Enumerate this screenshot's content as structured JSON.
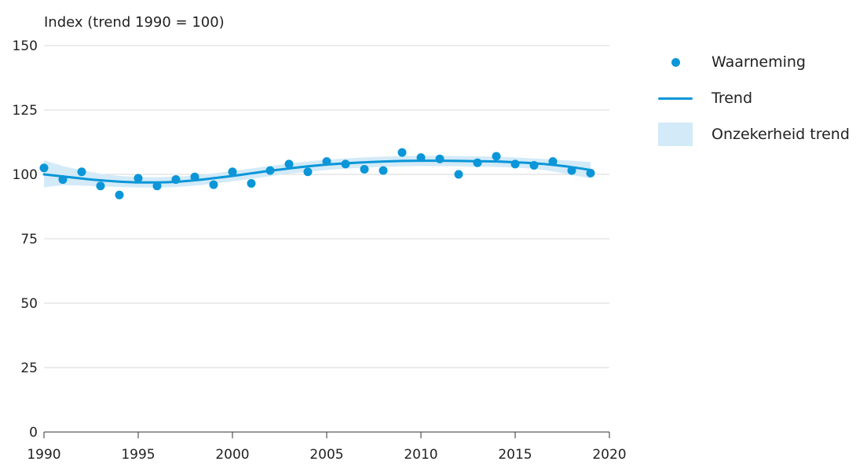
{
  "chart_data": {
    "type": "scatter",
    "title": "",
    "ylabel": "Index (trend 1990 = 100)",
    "xlabel": "",
    "xlim": [
      1990,
      2020
    ],
    "ylim": [
      0,
      150
    ],
    "x_ticks": [
      "1990",
      "1995",
      "2000",
      "2005",
      "2010",
      "2015",
      "2020"
    ],
    "y_ticks": [
      "0",
      "25",
      "50",
      "75",
      "100",
      "125",
      "150"
    ],
    "grid": true,
    "legend_placement": "top-right",
    "series": [
      {
        "name": "Waarneming",
        "kind": "points",
        "color": "#0a96d8",
        "x": [
          1990,
          1991,
          1992,
          1993,
          1994,
          1995,
          1996,
          1997,
          1998,
          1999,
          2000,
          2001,
          2002,
          2003,
          2004,
          2005,
          2006,
          2007,
          2008,
          2009,
          2010,
          2011,
          2012,
          2013,
          2014,
          2015,
          2016,
          2017,
          2018,
          2019
        ],
        "y": [
          102.5,
          98,
          101,
          95.5,
          92,
          98.5,
          95.5,
          98,
          99,
          96,
          101,
          96.5,
          101.5,
          104,
          101,
          105,
          104,
          102,
          101.5,
          108.5,
          106.5,
          106,
          100,
          104.5,
          107,
          104,
          103.5,
          105,
          101.5,
          100.5
        ]
      },
      {
        "name": "Trend",
        "kind": "line",
        "color": "#0a96d8",
        "x": [
          1990,
          1991,
          1992,
          1993,
          1994,
          1995,
          1996,
          1997,
          1998,
          1999,
          2000,
          2001,
          2002,
          2003,
          2004,
          2005,
          2006,
          2007,
          2008,
          2009,
          2010,
          2011,
          2012,
          2013,
          2014,
          2015,
          2016,
          2017,
          2018,
          2019
        ],
        "y": [
          100,
          99.2,
          98.4,
          97.7,
          97.2,
          96.9,
          96.9,
          97.1,
          97.7,
          98.5,
          99.4,
          100.4,
          101.4,
          102.3,
          103.1,
          103.8,
          104.3,
          104.7,
          105,
          105.2,
          105.3,
          105.3,
          105.2,
          105.1,
          105,
          104.7,
          104.3,
          103.7,
          102.8,
          101.7
        ]
      },
      {
        "name": "Onzekerheid trend",
        "kind": "band",
        "color": "#d3eaf8",
        "x": [
          1990,
          1991,
          1992,
          1993,
          1994,
          1995,
          1996,
          1997,
          1998,
          1999,
          2000,
          2001,
          2002,
          2003,
          2004,
          2005,
          2006,
          2007,
          2008,
          2009,
          2010,
          2011,
          2012,
          2013,
          2014,
          2015,
          2016,
          2017,
          2018,
          2019
        ],
        "upper": [
          105.5,
          103.2,
          101.6,
          100.2,
          99.4,
          99,
          98.9,
          99.1,
          99.6,
          100.4,
          101.3,
          102.3,
          103.3,
          104.2,
          105,
          105.7,
          106.2,
          106.6,
          106.9,
          107.1,
          107.2,
          107.2,
          107.1,
          107,
          106.9,
          106.6,
          106.2,
          105.8,
          105.3,
          104.8
        ],
        "lower": [
          95,
          95.8,
          95.6,
          95.4,
          95.1,
          94.9,
          94.9,
          95.1,
          95.6,
          96.4,
          97.3,
          98.3,
          99.3,
          100.2,
          101,
          101.7,
          102.2,
          102.6,
          102.9,
          103.1,
          103.2,
          103.2,
          103.1,
          103,
          102.9,
          102.6,
          102.2,
          101.2,
          99.8,
          98.5
        ]
      }
    ]
  },
  "legend": {
    "items": [
      {
        "label": "Waarneming",
        "key": "dot",
        "color": "#0a96d8"
      },
      {
        "label": "Trend",
        "key": "line",
        "color": "#0a96d8"
      },
      {
        "label": "Onzekerheid trend",
        "key": "band",
        "color": "#d3eaf8"
      }
    ]
  }
}
